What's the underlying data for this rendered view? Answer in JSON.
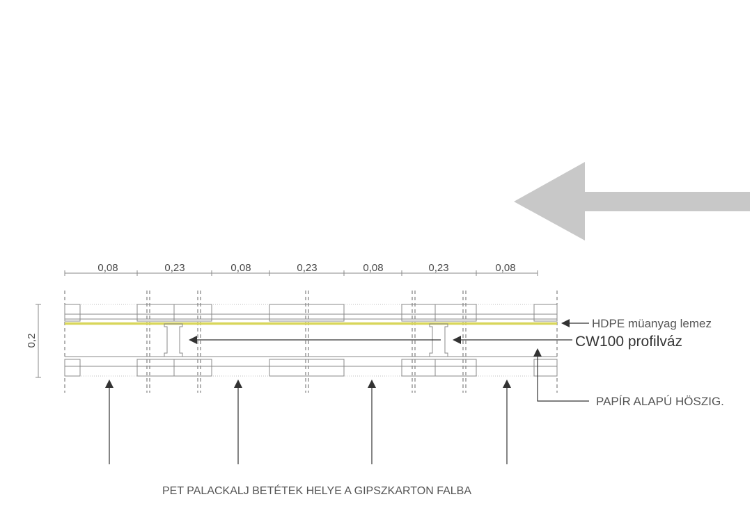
{
  "dimensions": {
    "widths": [
      "0,08",
      "0,23",
      "0,08",
      "0,23",
      "0,08",
      "0,23",
      "0,08"
    ],
    "height": "0,2"
  },
  "labels": {
    "hdpe": "HDPE müanyag lemez",
    "cw100": "CW100 profilváz",
    "paper": "PAPÍR ALAPÚ HÖSZIG.",
    "pet": "PET PALACKALJ BETÉTEK HELYE A GIPSZKARTON FALBA"
  },
  "colors": {
    "hdpe_layer": "#d8d65a",
    "direction_arrow": "#c8c8c8",
    "lines": "#666666"
  },
  "icons": {
    "direction_arrow": "left-arrow-icon"
  }
}
